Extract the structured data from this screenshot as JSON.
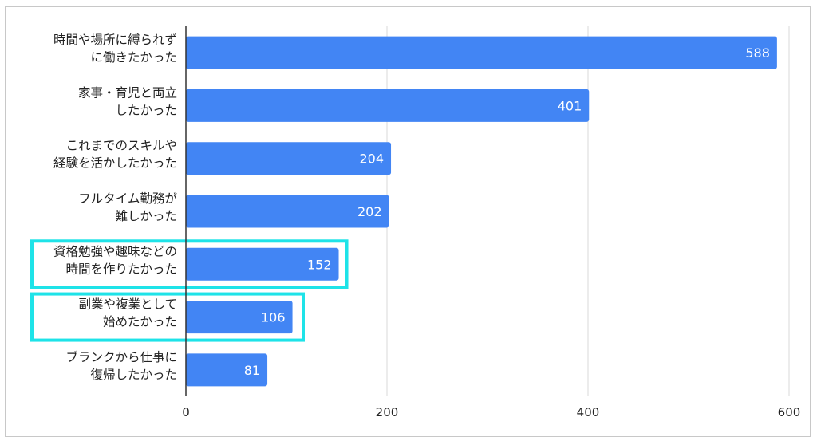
{
  "chart_data": {
    "type": "bar",
    "orientation": "horizontal",
    "categories": [
      [
        "時間や場所に縛られず",
        "に働きたかった"
      ],
      [
        "家事・育児と両立",
        "したかった"
      ],
      [
        "これまでのスキルや",
        "経験を活かしたかった"
      ],
      [
        "フルタイム勤務が",
        "難しかった"
      ],
      [
        "資格勉強や趣味などの",
        "時間を作りたかった"
      ],
      [
        "副業や複業として",
        "始めたかった"
      ],
      [
        "ブランクから仕事に",
        "復帰したかった"
      ]
    ],
    "values": [
      588,
      401,
      204,
      202,
      152,
      106,
      81
    ],
    "data_labels": [
      "588",
      "401",
      "204",
      "202",
      "152",
      "106",
      "81"
    ],
    "highlighted": [
      4,
      5
    ],
    "x_ticks": [
      0,
      200,
      400,
      600
    ],
    "x_tick_labels": [
      "0",
      "200",
      "400",
      "600"
    ],
    "xlim": [
      0,
      600
    ],
    "grid": true,
    "title": "",
    "xlabel": "",
    "ylabel": "",
    "colors": {
      "bar": "#4285f4",
      "label": "#ffffff",
      "highlight": "#1ee3e8",
      "grid": "#d9d9d9",
      "axis": "#333333",
      "text": "#222222"
    }
  }
}
